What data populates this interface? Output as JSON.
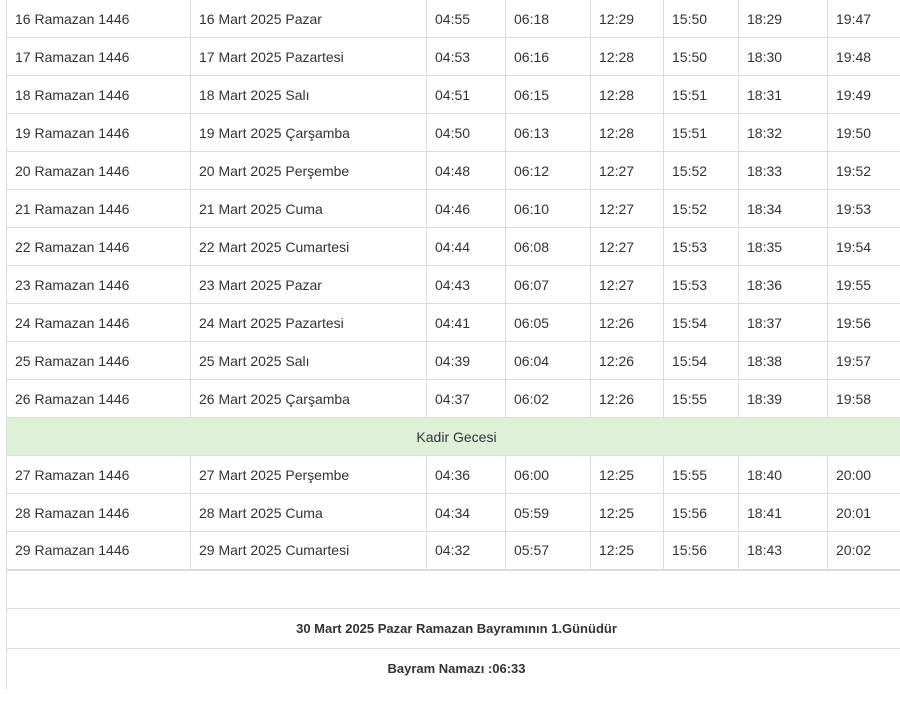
{
  "rows": [
    {
      "hijri": "16 Ramazan 1446",
      "date": "16 Mart 2025 Pazar",
      "imsak": "04:55",
      "gunes": "06:18",
      "ogle": "12:29",
      "ikindi": "15:50",
      "aksam": "18:29",
      "yatsi": "19:47"
    },
    {
      "hijri": "17 Ramazan 1446",
      "date": "17 Mart 2025 Pazartesi",
      "imsak": "04:53",
      "gunes": "06:16",
      "ogle": "12:28",
      "ikindi": "15:50",
      "aksam": "18:30",
      "yatsi": "19:48"
    },
    {
      "hijri": "18 Ramazan 1446",
      "date": "18 Mart 2025 Salı",
      "imsak": "04:51",
      "gunes": "06:15",
      "ogle": "12:28",
      "ikindi": "15:51",
      "aksam": "18:31",
      "yatsi": "19:49"
    },
    {
      "hijri": "19 Ramazan 1446",
      "date": "19 Mart 2025 Çarşamba",
      "imsak": "04:50",
      "gunes": "06:13",
      "ogle": "12:28",
      "ikindi": "15:51",
      "aksam": "18:32",
      "yatsi": "19:50"
    },
    {
      "hijri": "20 Ramazan 1446",
      "date": "20 Mart 2025 Perşembe",
      "imsak": "04:48",
      "gunes": "06:12",
      "ogle": "12:27",
      "ikindi": "15:52",
      "aksam": "18:33",
      "yatsi": "19:52"
    },
    {
      "hijri": "21 Ramazan 1446",
      "date": "21 Mart 2025 Cuma",
      "imsak": "04:46",
      "gunes": "06:10",
      "ogle": "12:27",
      "ikindi": "15:52",
      "aksam": "18:34",
      "yatsi": "19:53"
    },
    {
      "hijri": "22 Ramazan 1446",
      "date": "22 Mart 2025 Cumartesi",
      "imsak": "04:44",
      "gunes": "06:08",
      "ogle": "12:27",
      "ikindi": "15:53",
      "aksam": "18:35",
      "yatsi": "19:54"
    },
    {
      "hijri": "23 Ramazan 1446",
      "date": "23 Mart 2025 Pazar",
      "imsak": "04:43",
      "gunes": "06:07",
      "ogle": "12:27",
      "ikindi": "15:53",
      "aksam": "18:36",
      "yatsi": "19:55"
    },
    {
      "hijri": "24 Ramazan 1446",
      "date": "24 Mart 2025 Pazartesi",
      "imsak": "04:41",
      "gunes": "06:05",
      "ogle": "12:26",
      "ikindi": "15:54",
      "aksam": "18:37",
      "yatsi": "19:56"
    },
    {
      "hijri": "25 Ramazan 1446",
      "date": "25 Mart 2025 Salı",
      "imsak": "04:39",
      "gunes": "06:04",
      "ogle": "12:26",
      "ikindi": "15:54",
      "aksam": "18:38",
      "yatsi": "19:57"
    },
    {
      "hijri": "26 Ramazan 1446",
      "date": "26 Mart 2025 Çarşamba",
      "imsak": "04:37",
      "gunes": "06:02",
      "ogle": "12:26",
      "ikindi": "15:55",
      "aksam": "18:39",
      "yatsi": "19:58"
    },
    {
      "note": "Kadir Gecesi"
    },
    {
      "hijri": "27 Ramazan 1446",
      "date": "27 Mart 2025 Perşembe",
      "imsak": "04:36",
      "gunes": "06:00",
      "ogle": "12:25",
      "ikindi": "15:55",
      "aksam": "18:40",
      "yatsi": "20:00"
    },
    {
      "hijri": "28 Ramazan 1446",
      "date": "28 Mart 2025 Cuma",
      "imsak": "04:34",
      "gunes": "05:59",
      "ogle": "12:25",
      "ikindi": "15:56",
      "aksam": "18:41",
      "yatsi": "20:01"
    },
    {
      "hijri": "29 Ramazan 1446",
      "date": "29 Mart 2025 Cumartesi",
      "imsak": "04:32",
      "gunes": "05:57",
      "ogle": "12:25",
      "ikindi": "15:56",
      "aksam": "18:43",
      "yatsi": "20:02"
    }
  ],
  "footer": {
    "bayram": "30 Mart 2025 Pazar Ramazan Bayramının 1.Günüdür",
    "namaz": "Bayram Namazı :06:33"
  },
  "colors": {
    "note_bg": "#dff0d8",
    "border": "#dddddd"
  }
}
